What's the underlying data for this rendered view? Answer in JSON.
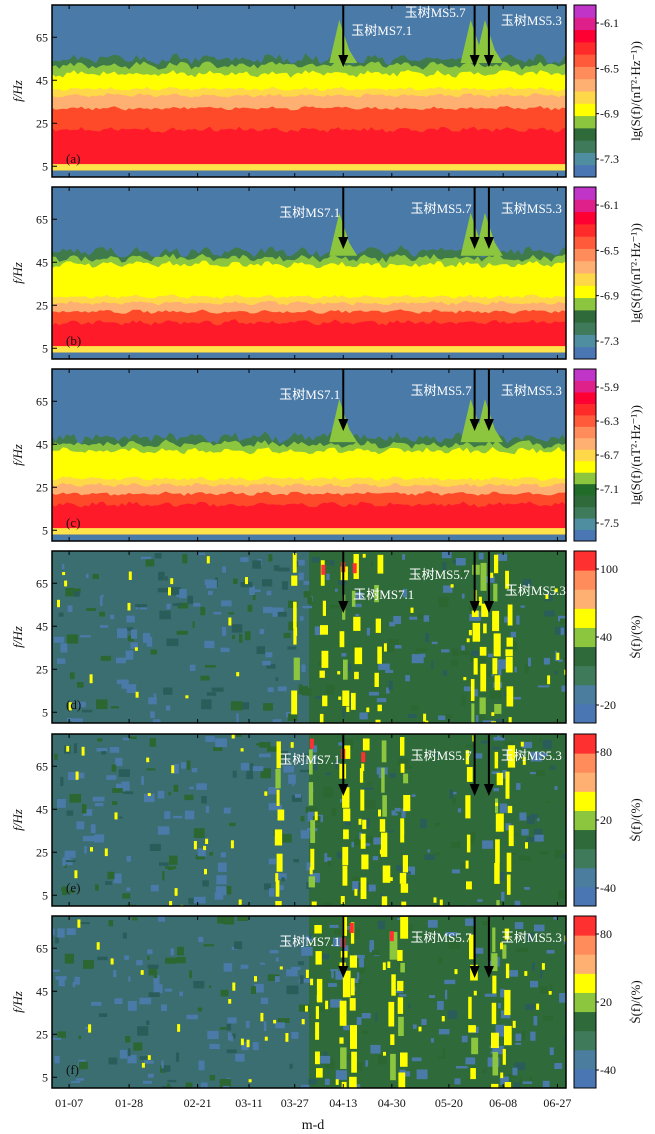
{
  "figure": {
    "xlabel": "m-d",
    "x_ticks": [
      "01-07",
      "01-28",
      "02-21",
      "03-11",
      "03-27",
      "04-13",
      "04-30",
      "05-20",
      "06-08",
      "06-27"
    ],
    "ylabel": "f/Hz",
    "y_ticks": [
      "5",
      "25",
      "45",
      "65"
    ]
  },
  "chart_data": [
    {
      "type": "heatmap",
      "panel": "(a)",
      "ylabel": "f/Hz",
      "ylim": [
        0,
        80
      ],
      "y_ticks": [
        5,
        25,
        45,
        65
      ],
      "colorbar_label": "lg(S(f)/(nT²·Hz⁻¹))",
      "colorbar_ticks": [
        "-6.1",
        "-6.5",
        "-6.9",
        "-7.3"
      ],
      "colorbar_colors": [
        "#4a76b4",
        "#4f8ea0",
        "#3f7a5a",
        "#2f6b3a",
        "#8cc63e",
        "#ffff00",
        "#ffd84a",
        "#fdb071",
        "#ff8c5a",
        "#ff5a3a",
        "#ff2a2a",
        "#ff0033",
        "#e0208a",
        "#c035c8"
      ],
      "band_boundaries_hz": {
        "green": 55,
        "yellow": 48,
        "orange": 38,
        "red": 32,
        "red_low": 6,
        "bottom_edge": 3
      },
      "annotations": [
        {
          "text": "玉树MS7.1",
          "date": "04-13"
        },
        {
          "text": "玉树MS5.7",
          "date": "05-29"
        },
        {
          "text": "玉树MS5.3",
          "date": "06-03"
        }
      ]
    },
    {
      "type": "heatmap",
      "panel": "(b)",
      "ylabel": "f/Hz",
      "ylim": [
        0,
        80
      ],
      "y_ticks": [
        5,
        25,
        45,
        65
      ],
      "colorbar_label": "lg(S(f)/(nT²·Hz⁻¹))",
      "colorbar_ticks": [
        "-6.1",
        "-6.5",
        "-6.9",
        "-7.3"
      ],
      "colorbar_colors": [
        "#4a76b4",
        "#4f8ea0",
        "#3f7a5a",
        "#2f6b3a",
        "#8cc63e",
        "#ffff00",
        "#ffd84a",
        "#fdb071",
        "#ff8c5a",
        "#ff5a3a",
        "#ff2a2a",
        "#ff0033",
        "#e0208a",
        "#c035c8"
      ],
      "band_boundaries_hz": {
        "green": 50,
        "yellow": 44,
        "orange": 26,
        "red": 22,
        "red_low": 6,
        "bottom_edge": 3
      },
      "annotations": [
        {
          "text": "玉树MS7.1",
          "date": "04-13"
        },
        {
          "text": "玉树MS5.7",
          "date": "05-29"
        },
        {
          "text": "玉树MS5.3",
          "date": "06-03"
        }
      ]
    },
    {
      "type": "heatmap",
      "panel": "(c)",
      "ylabel": "f/Hz",
      "ylim": [
        0,
        80
      ],
      "y_ticks": [
        5,
        25,
        45,
        65
      ],
      "colorbar_label": "lg(S(f)/(nT²·Hz⁻¹))",
      "colorbar_ticks": [
        "-5.9",
        "-6.3",
        "-6.7",
        "-7.1",
        "-7.5"
      ],
      "colorbar_colors": [
        "#4a76b4",
        "#4f8ea0",
        "#3f7a5a",
        "#2f6b3a",
        "#226c2a",
        "#8cc63e",
        "#ffff00",
        "#ffd84a",
        "#fdb071",
        "#ff8c5a",
        "#ff5a3a",
        "#ff2a2a",
        "#ff0033",
        "#e0208a",
        "#c035c8"
      ],
      "band_boundaries_hz": {
        "green": 48,
        "yellow": 42,
        "orange": 26,
        "red": 22,
        "red_low": 6,
        "bottom_edge": 3
      },
      "annotations": [
        {
          "text": "玉树MS7.1",
          "date": "04-13"
        },
        {
          "text": "玉树MS5.7",
          "date": "05-29"
        },
        {
          "text": "玉树MS5.3",
          "date": "06-03"
        }
      ]
    },
    {
      "type": "heatmap",
      "panel": "(d)",
      "ylabel": "f/Hz",
      "ylim": [
        0,
        80
      ],
      "y_ticks": [
        5,
        25,
        45,
        65
      ],
      "colorbar_label": "Ṡ(f)/(%)",
      "colorbar_ticks": [
        "100",
        "40",
        "-20"
      ],
      "colorbar_colors": [
        "#4a76b4",
        "#4a7d9e",
        "#3f7a5a",
        "#2f6b3a",
        "#8cc63e",
        "#ffff00",
        "#fdb071",
        "#ff8c5a",
        "#ff3030"
      ],
      "anomaly_dates": [
        "03-27",
        "04-06",
        "04-13",
        "04-17",
        "04-25",
        "05-29",
        "06-01",
        "06-05",
        "06-10"
      ],
      "annotations": [
        {
          "text": "玉树MS7.1",
          "date": "04-13"
        },
        {
          "text": "玉树MS5.7",
          "date": "05-29"
        },
        {
          "text": "玉树MS5.3",
          "date": "06-03"
        }
      ]
    },
    {
      "type": "heatmap",
      "panel": "(e)",
      "ylabel": "f/Hz",
      "ylim": [
        0,
        80
      ],
      "y_ticks": [
        5,
        25,
        45,
        65
      ],
      "colorbar_label": "Ṡ(f)/(%)",
      "colorbar_ticks": [
        "80",
        "20",
        "-40"
      ],
      "colorbar_colors": [
        "#4a76b4",
        "#4a7d9e",
        "#3f7a5a",
        "#2f6b3a",
        "#8cc63e",
        "#ffff00",
        "#fdb071",
        "#ff8c5a",
        "#ff3030"
      ],
      "anomaly_dates": [
        "03-21",
        "04-02",
        "04-13",
        "04-20",
        "04-27",
        "05-04",
        "05-27",
        "06-06",
        "06-10"
      ],
      "annotations": [
        {
          "text": "玉树MS7.1",
          "date": "04-13"
        },
        {
          "text": "玉树MS5.7",
          "date": "05-29"
        },
        {
          "text": "玉树MS5.3",
          "date": "06-03"
        }
      ]
    },
    {
      "type": "heatmap",
      "panel": "(f)",
      "ylabel": "f/Hz",
      "ylim": [
        0,
        80
      ],
      "y_ticks": [
        5,
        25,
        45,
        65
      ],
      "colorbar_label": "Ṡ(f)/(%)",
      "colorbar_ticks": [
        "80",
        "20",
        "-40"
      ],
      "colorbar_colors": [
        "#4a76b4",
        "#4a7d9e",
        "#3f7a5a",
        "#2f6b3a",
        "#8cc63e",
        "#ffff00",
        "#fdb071",
        "#ff8c5a",
        "#ff3030"
      ],
      "anomaly_dates": [
        "04-04",
        "04-13",
        "04-16",
        "04-30",
        "05-03",
        "05-28",
        "06-05",
        "06-09"
      ],
      "annotations": [
        {
          "text": "玉树MS7.1",
          "date": "04-13"
        },
        {
          "text": "玉树MS5.7",
          "date": "05-29"
        },
        {
          "text": "玉树MS5.3",
          "date": "06-03"
        }
      ]
    }
  ]
}
